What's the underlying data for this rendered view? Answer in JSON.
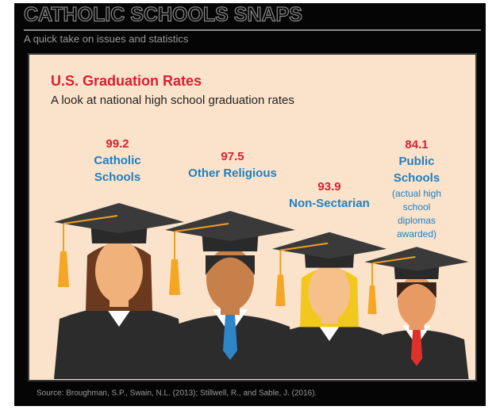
{
  "header": {
    "title": "CATHOLIC SCHOOLS SNAPS",
    "subtitle": "A quick take on issues and statistics"
  },
  "panel": {
    "title": "U.S. Graduation Rates",
    "subtitle": "A look at national high school graduation rates",
    "groups": [
      {
        "value": 99.2,
        "label": [
          "Catholic",
          "Schools"
        ]
      },
      {
        "value": 97.5,
        "label": [
          "Other Religious"
        ]
      },
      {
        "value": 93.9,
        "label": [
          "Non-Sectarian"
        ]
      },
      {
        "value": 84.1,
        "label": [
          "Public",
          "Schools"
        ],
        "note": [
          "(actual high",
          "school",
          "diplomas",
          "awarded)"
        ]
      }
    ]
  },
  "source": "Source: Broughman, S.P., Swain, N.L. (2013); Stillwell, R., and Sable, J. (2016)."
}
